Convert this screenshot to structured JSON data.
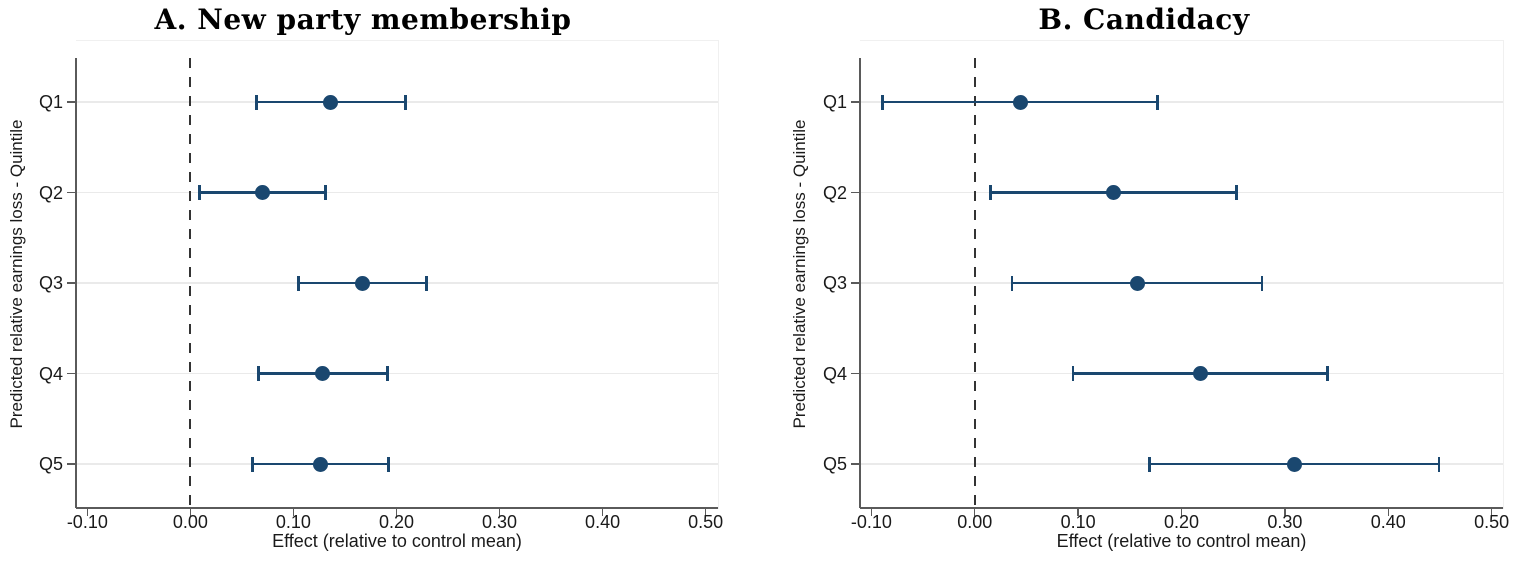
{
  "figure_title": "Dot-and-whisker coefficient plot, two panels",
  "colors": {
    "marker": "#1a476f",
    "grid": "#eaeaea",
    "axis": "#5a5a5a",
    "zero_line": "#333333",
    "text": "#1a1a1a",
    "background": "#ffffff"
  },
  "chart_data": [
    {
      "panel": "A",
      "type": "scatter",
      "title": "A. New party membership",
      "xlabel": "Effect (relative to control mean)",
      "ylabel": "Predicted relative earnings loss - Quintile",
      "categories": [
        "Q1",
        "Q2",
        "Q3",
        "Q4",
        "Q5"
      ],
      "estimates": [
        0.136,
        0.07,
        0.167,
        0.128,
        0.126
      ],
      "ci_low": [
        0.064,
        0.009,
        0.105,
        0.066,
        0.06
      ],
      "ci_high": [
        0.209,
        0.131,
        0.229,
        0.191,
        0.192
      ],
      "xlim": [
        -0.111,
        0.512
      ],
      "xticks": [
        -0.1,
        0.0,
        0.1,
        0.2,
        0.3,
        0.4,
        0.5
      ],
      "xtick_labels": [
        "-0.10",
        "0.00",
        "0.10",
        "0.20",
        "0.30",
        "0.40",
        "0.50"
      ],
      "zero_reference_line": 0.0,
      "grid": true,
      "legend": "none",
      "marker_color": "#1a476f"
    },
    {
      "panel": "B",
      "type": "scatter",
      "title": "B. Candidacy",
      "xlabel": "Effect (relative to control mean)",
      "ylabel": "Predicted relative earnings loss - Quintile",
      "categories": [
        "Q1",
        "Q2",
        "Q3",
        "Q4",
        "Q5"
      ],
      "estimates": [
        0.044,
        0.134,
        0.157,
        0.218,
        0.309
      ],
      "ci_low": [
        -0.089,
        0.015,
        0.036,
        0.095,
        0.169
      ],
      "ci_high": [
        0.177,
        0.253,
        0.278,
        0.341,
        0.449
      ],
      "xlim": [
        -0.111,
        0.511
      ],
      "xticks": [
        -0.1,
        0.0,
        0.1,
        0.2,
        0.3,
        0.4,
        0.5
      ],
      "xtick_labels": [
        "-0.10",
        "0.00",
        "0.10",
        "0.20",
        "0.30",
        "0.40",
        "0.50"
      ],
      "zero_reference_line": 0.0,
      "grid": true,
      "legend": "none",
      "marker_color": "#1a476f"
    }
  ]
}
